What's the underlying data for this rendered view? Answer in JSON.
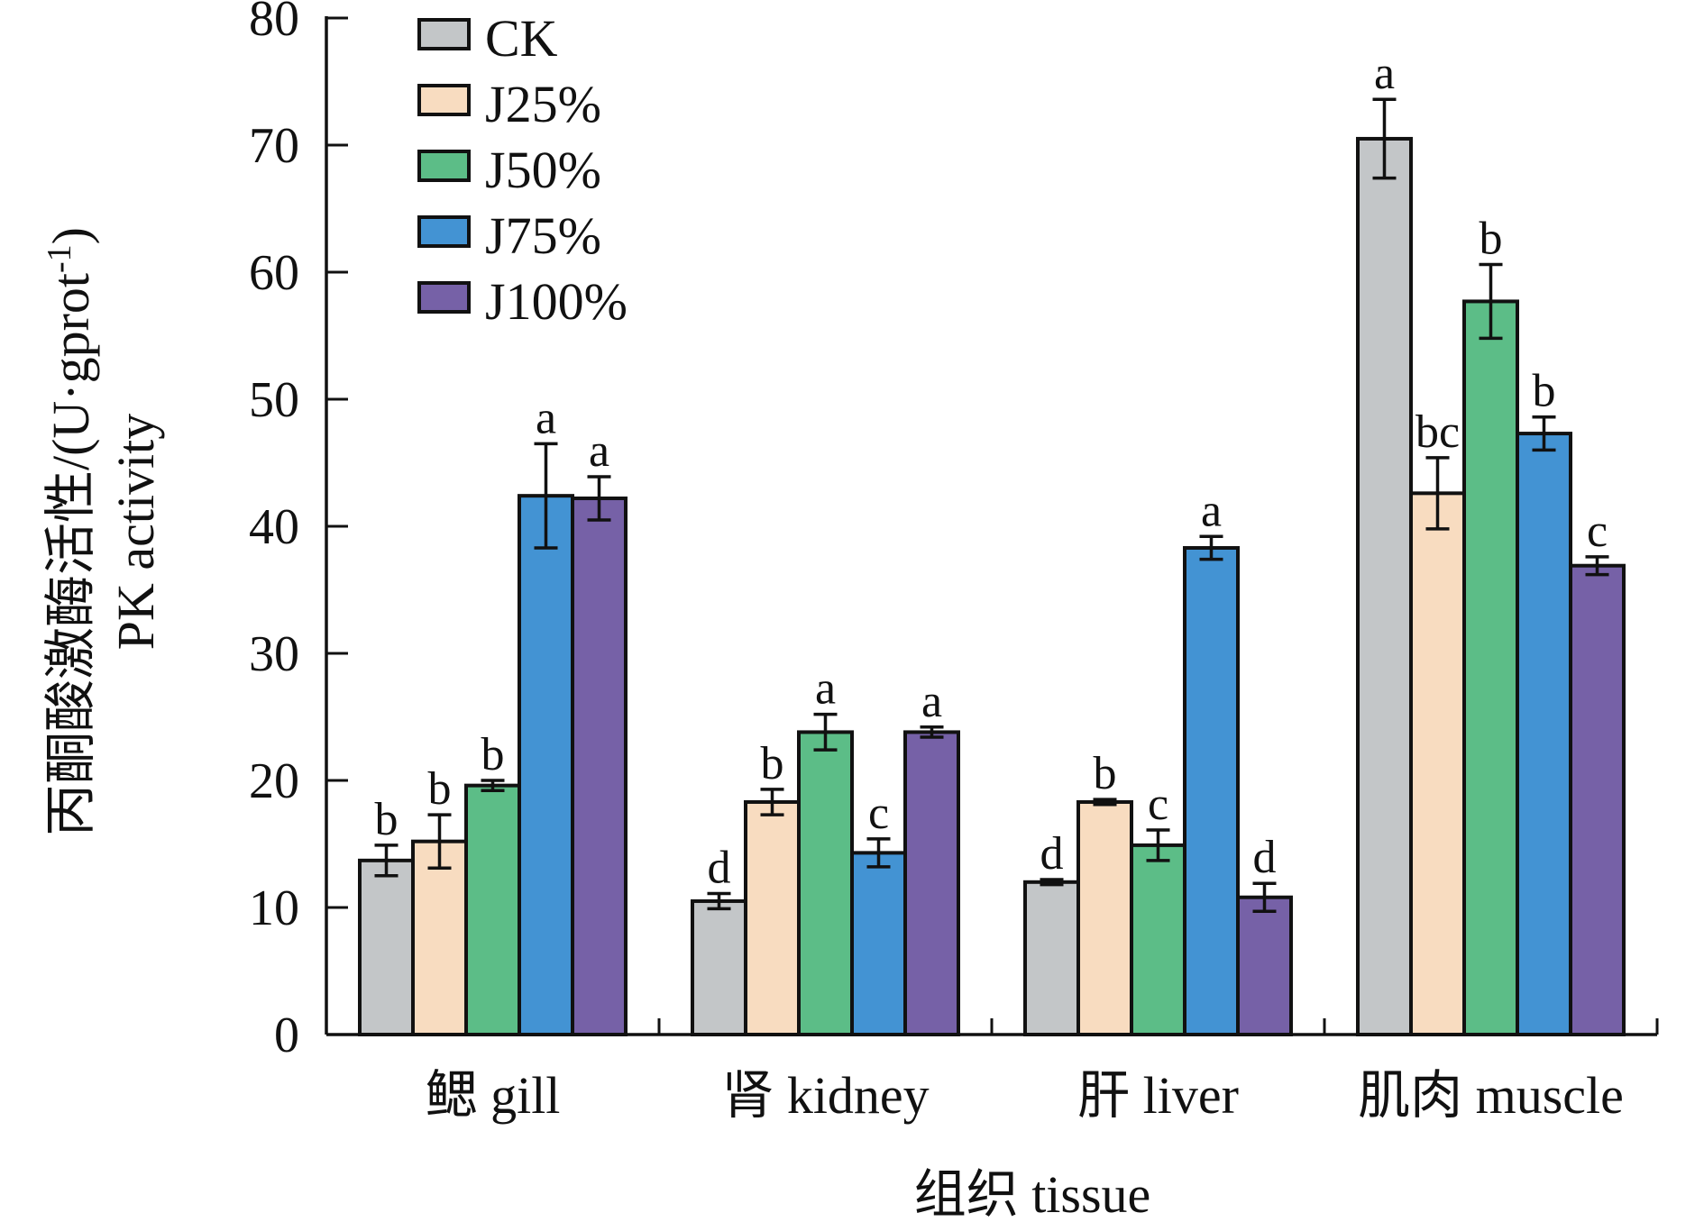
{
  "chart_data": {
    "type": "bar",
    "title": "",
    "xlabel": "组织 tissue",
    "ylabel_line1": "丙酮酸激酶活性/(U·gprot",
    "ylabel_sup": "-1",
    "ylabel_line1_close": ")",
    "ylabel_line2": "PK activity",
    "ylim": [
      0,
      80
    ],
    "yticks": [
      "0",
      "10",
      "20",
      "30",
      "40",
      "50",
      "60",
      "70",
      "80"
    ],
    "grid": false,
    "legend_position": "top-left",
    "categories": [
      "鳃 gill",
      "肾 kidney",
      "肝 liver",
      "肌肉 muscle"
    ],
    "series": [
      {
        "name": "CK",
        "color": "#c3c6c8",
        "values": [
          13.7,
          10.5,
          12.0,
          70.5
        ],
        "errors": [
          1.2,
          0.6,
          0.2,
          3.1
        ],
        "labels": [
          "b",
          "d",
          "d",
          "a"
        ]
      },
      {
        "name": "J25%",
        "color": "#f8dcc0",
        "values": [
          15.2,
          18.3,
          18.3,
          42.6
        ],
        "errors": [
          2.1,
          1.0,
          0.2,
          2.8
        ],
        "labels": [
          "b",
          "b",
          "b",
          "bc"
        ]
      },
      {
        "name": "J50%",
        "color": "#5cbd87",
        "values": [
          19.6,
          23.8,
          14.9,
          57.7
        ],
        "errors": [
          0.4,
          1.4,
          1.2,
          2.9
        ],
        "labels": [
          "b",
          "a",
          "c",
          "b"
        ]
      },
      {
        "name": "J75%",
        "color": "#4393d3",
        "values": [
          42.4,
          14.3,
          38.3,
          47.3
        ],
        "errors": [
          4.1,
          1.1,
          0.9,
          1.3
        ],
        "labels": [
          "a",
          "c",
          "a",
          "b"
        ]
      },
      {
        "name": "J100%",
        "color": "#7661a7",
        "values": [
          42.2,
          23.8,
          10.8,
          36.9
        ],
        "errors": [
          1.7,
          0.4,
          1.1,
          0.7
        ],
        "labels": [
          "a",
          "a",
          "d",
          "c"
        ]
      }
    ]
  }
}
